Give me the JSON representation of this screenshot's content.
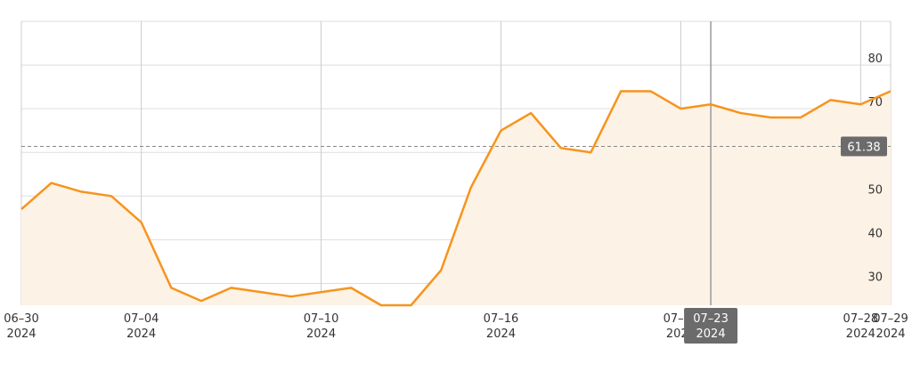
{
  "chart_data": {
    "type": "area",
    "x": [
      "06-30",
      "07-01",
      "07-02",
      "07-03",
      "07-04",
      "07-05",
      "07-06",
      "07-07",
      "07-08",
      "07-09",
      "07-10",
      "07-11",
      "07-12",
      "07-13",
      "07-14",
      "07-15",
      "07-16",
      "07-17",
      "07-18",
      "07-19",
      "07-20",
      "07-21",
      "07-22",
      "07-23",
      "07-24",
      "07-25",
      "07-26",
      "07-27",
      "07-28",
      "07-29"
    ],
    "series": [
      {
        "values": [
          47,
          53,
          51,
          50,
          44,
          29,
          26,
          29,
          28,
          27,
          28,
          29,
          25,
          25,
          33,
          52,
          65,
          69,
          61,
          60,
          74,
          74,
          70,
          71,
          69,
          68,
          68,
          72,
          71,
          74
        ]
      }
    ],
    "ylim": [
      25,
      90
    ],
    "yticks": [
      "30",
      "40",
      "50",
      "60",
      "70",
      "80"
    ],
    "xticks": [
      {
        "index": 0,
        "line1": "06–30",
        "line2": "2024"
      },
      {
        "index": 4,
        "line1": "07–04",
        "line2": "2024"
      },
      {
        "index": 10,
        "line1": "07–10",
        "line2": "2024"
      },
      {
        "index": 16,
        "line1": "07–16",
        "line2": "2024"
      },
      {
        "index": 22,
        "line1": "07–22",
        "line2": "2024"
      },
      {
        "index": 28,
        "line1": "07–28",
        "line2": "2024"
      },
      {
        "index": 29,
        "line1": "07–29",
        "line2": "2024"
      }
    ],
    "reference_line": {
      "value": 61.38,
      "label": "61.38"
    },
    "crosshair": {
      "index": 23,
      "line1": "07–23",
      "line2": "2024"
    },
    "grid": true,
    "colors": {
      "line": "#f7941d",
      "fill": "#fdf2e6",
      "grid": "#dddddd",
      "vgrid": "#cccccc",
      "crosshair": "#999999",
      "tag_bg": "#6b6b6b",
      "tag_text": "#ffffff",
      "text": "#333333"
    }
  }
}
